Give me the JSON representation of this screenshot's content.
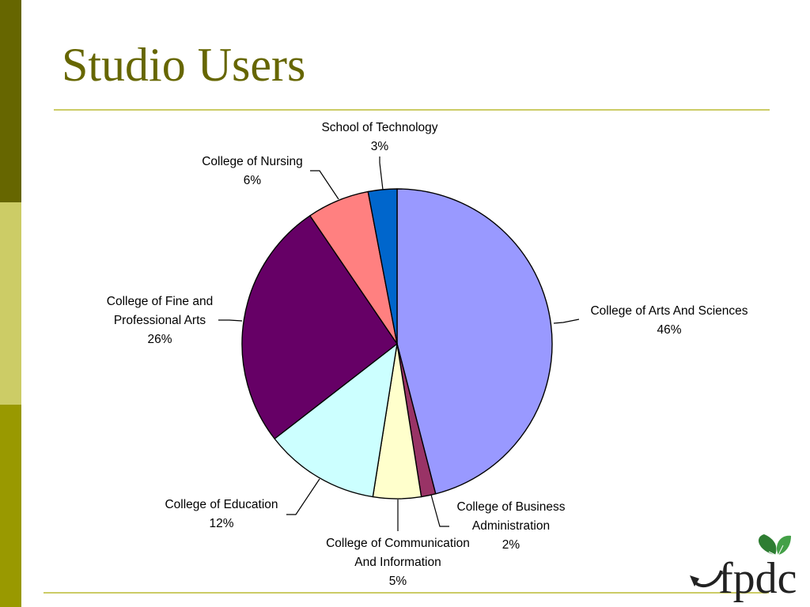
{
  "slide": {
    "title": "Studio Users",
    "logo_text": "fpdc"
  },
  "colors": {
    "title": "#666600",
    "bar_dark": "#666600",
    "bar_light": "#cccc66",
    "bar_mid": "#999900",
    "rule": "#cccc66",
    "leaf": "#2e7d32"
  },
  "chart_data": {
    "type": "pie",
    "title": "",
    "start_angle_deg": 0,
    "direction": "clockwise",
    "slices": [
      {
        "label": [
          "College of Arts And Sciences"
        ],
        "percent_label": "46%",
        "value": 46,
        "color": "#9999ff"
      },
      {
        "label": [
          "College of Business",
          "Administration"
        ],
        "percent_label": "2%",
        "value": 1.5,
        "color": "#993366"
      },
      {
        "label": [
          "College of Communication",
          "And Information"
        ],
        "percent_label": "5%",
        "value": 5,
        "color": "#ffffcc"
      },
      {
        "label": [
          "College of Education"
        ],
        "percent_label": "12%",
        "value": 12,
        "color": "#ccffff"
      },
      {
        "label": [
          "College of Fine and",
          "Professional Arts"
        ],
        "percent_label": "26%",
        "value": 26,
        "color": "#660066"
      },
      {
        "label": [
          "College of Nursing"
        ],
        "percent_label": "6%",
        "value": 6.5,
        "color": "#ff8080"
      },
      {
        "label": [
          "School of Technology"
        ],
        "percent_label": "3%",
        "value": 3,
        "color": "#0066cc"
      }
    ]
  }
}
